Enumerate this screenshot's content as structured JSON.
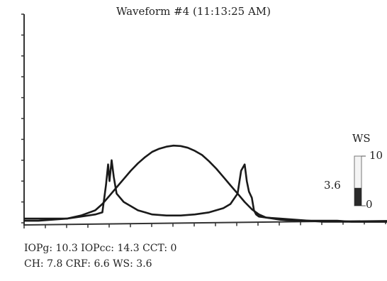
{
  "chart_data": {
    "type": "line",
    "title": "Waveform #4 (11:13:25 AM)",
    "xlabel": "",
    "ylabel": "",
    "grid": false,
    "series": [
      {
        "values_description_free": true,
        "color": "#1a1a1a",
        "x": [
          0,
          10,
          20,
          40,
          60,
          80,
          100,
          110,
          115,
          118,
          120,
          123,
          126,
          130,
          140,
          150,
          160,
          170,
          180,
          200,
          220,
          240,
          260,
          280,
          290,
          300,
          305,
          310,
          313,
          316,
          320,
          323,
          326,
          330,
          340,
          360,
          380,
          400,
          420,
          440,
          460,
          480,
          500,
          510
        ],
        "y": [
          2,
          2,
          2,
          2,
          2,
          3,
          4,
          5,
          18,
          28,
          20,
          30,
          22,
          14,
          10,
          8,
          6,
          5,
          4,
          3.5,
          3.5,
          4,
          5,
          7,
          9,
          14,
          25,
          28,
          20,
          15,
          12,
          6,
          4,
          3,
          2.5,
          2,
          1.5,
          1,
          1,
          1,
          0.5,
          0.5,
          0.5,
          0.5
        ]
      },
      {
        "color": "#1a1a1a",
        "x": [
          0,
          20,
          40,
          60,
          80,
          100,
          110,
          120,
          130,
          140,
          150,
          160,
          170,
          180,
          190,
          200,
          210,
          220,
          230,
          240,
          250,
          260,
          270,
          280,
          290,
          300,
          310,
          320,
          330,
          340,
          350,
          360,
          380,
          400,
          420,
          440,
          460,
          480,
          500,
          510
        ],
        "y": [
          1,
          1,
          1.5,
          2,
          3.5,
          6,
          9,
          13,
          17,
          21,
          25,
          28.5,
          31.5,
          34,
          35.5,
          36.5,
          37,
          36.8,
          36,
          34.5,
          32.5,
          29.5,
          26,
          22,
          18,
          14,
          10,
          6.5,
          4,
          2.5,
          2,
          1.5,
          1,
          1,
          0.5,
          0.5,
          0.5,
          0.5,
          0.5,
          0.5
        ]
      }
    ],
    "xlim": [
      0,
      510
    ],
    "ylim": [
      0,
      100
    ]
  },
  "ws_scale": {
    "label": "WS",
    "max_label": "10",
    "min_label": "0",
    "value_label": "3.6",
    "max": 10,
    "min": 0,
    "value": 3.6
  },
  "readout": {
    "line1": "IOPg: 10.3 IOPcc: 14.3 CCT: 0",
    "line2": "CH: 7.8 CRF: 6.6 WS: 3.6"
  }
}
